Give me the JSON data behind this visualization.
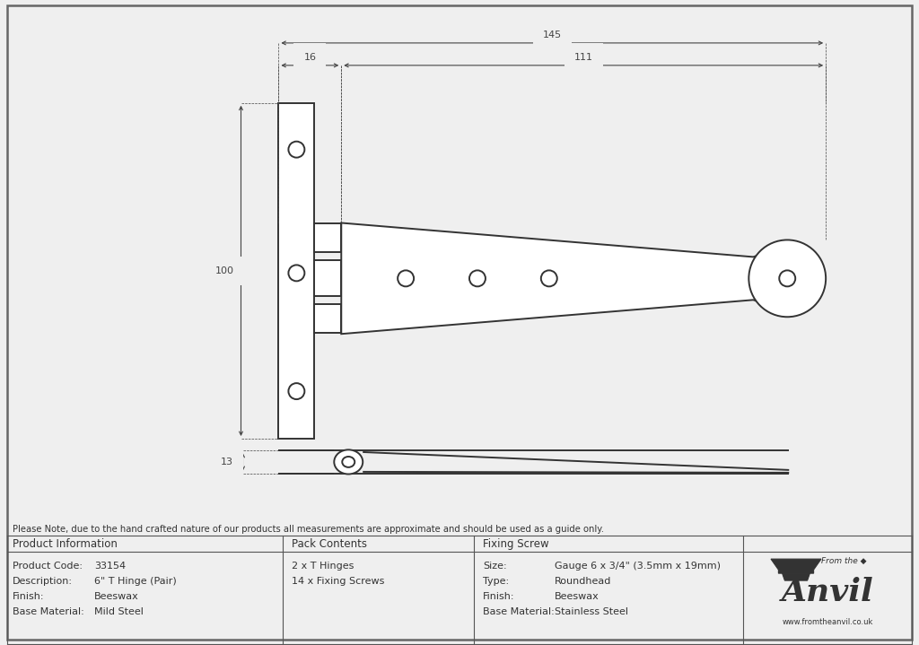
{
  "bg_color": "#efefef",
  "line_color": "#333333",
  "note_text": "Please Note, due to the hand crafted nature of our products all measurements are approximate and should be used as a guide only.",
  "table_data": {
    "col1_header": "Product Information",
    "col1_rows": [
      [
        "Product Code:",
        "33154"
      ],
      [
        "Description:",
        "6\" T Hinge (Pair)"
      ],
      [
        "Finish:",
        "Beeswax"
      ],
      [
        "Base Material:",
        "Mild Steel"
      ]
    ],
    "col2_header": "Pack Contents",
    "col2_rows": [
      "2 x T Hinges",
      "14 x Fixing Screws"
    ],
    "col3_header": "Fixing Screw",
    "col3_rows": [
      [
        "Size:",
        "Gauge 6 x 3/4\" (3.5mm x 19mm)"
      ],
      [
        "Type:",
        "Roundhead"
      ],
      [
        "Finish:",
        "Beeswax"
      ],
      [
        "Base Material:",
        "Stainless Steel"
      ]
    ]
  },
  "dim_145": "145",
  "dim_16": "16",
  "dim_111": "111",
  "dim_100": "100",
  "dim_13": "13"
}
